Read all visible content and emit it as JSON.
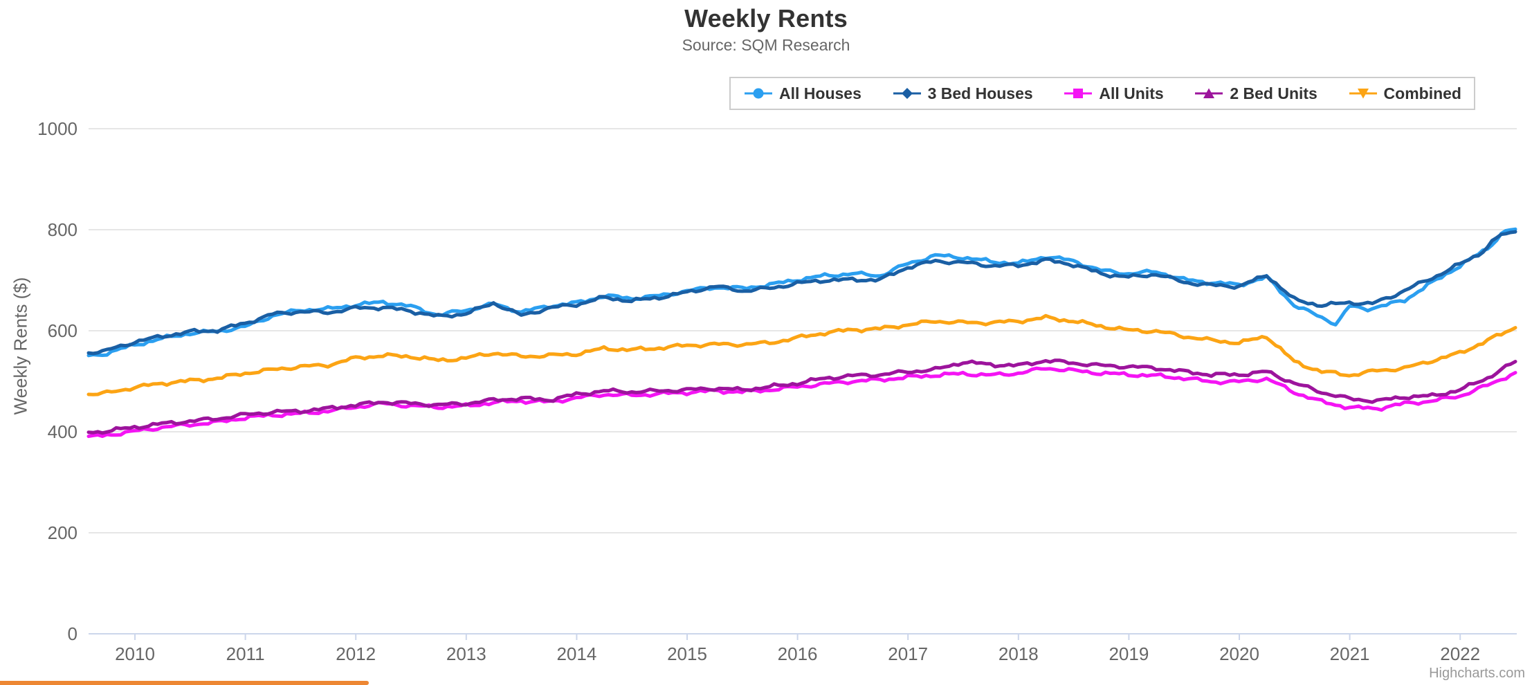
{
  "title": "Weekly Rents",
  "subtitle": "Source: SQM Research",
  "credits": "Highcharts.com",
  "styles": {
    "grid_color": "#e6e6e6",
    "axis_line_color": "#ccd6eb",
    "label_color": "#666666",
    "legend_border_color": "#cccccc",
    "partial_bar_color": "#ed8733"
  },
  "chart_data": {
    "type": "line",
    "title": "Weekly Rents",
    "subtitle": "Source: SQM Research",
    "xlabel": "",
    "ylabel": "Weekly Rents ($)",
    "xlim": [
      2009.58,
      2022.5
    ],
    "ylim": [
      0,
      1000
    ],
    "grid": true,
    "legend_position": "top-right",
    "x_ticks": [
      2010,
      2011,
      2012,
      2013,
      2014,
      2015,
      2016,
      2017,
      2018,
      2019,
      2020,
      2021,
      2022
    ],
    "y_ticks": [
      0,
      200,
      400,
      600,
      800,
      1000
    ],
    "series": [
      {
        "name": "All Houses",
        "color": "#2b9ff0",
        "marker": "circle",
        "points": [
          [
            2009.58,
            551
          ],
          [
            2009.7,
            553
          ],
          [
            2010.0,
            572
          ],
          [
            2010.25,
            585
          ],
          [
            2010.5,
            595
          ],
          [
            2010.75,
            599
          ],
          [
            2011.0,
            608
          ],
          [
            2011.25,
            630
          ],
          [
            2011.5,
            641
          ],
          [
            2011.75,
            643
          ],
          [
            2012.0,
            651
          ],
          [
            2012.25,
            657
          ],
          [
            2012.5,
            648
          ],
          [
            2012.75,
            631
          ],
          [
            2013.0,
            641
          ],
          [
            2013.25,
            653
          ],
          [
            2013.5,
            637
          ],
          [
            2013.75,
            649
          ],
          [
            2014.0,
            655
          ],
          [
            2014.25,
            669
          ],
          [
            2014.5,
            664
          ],
          [
            2014.75,
            669
          ],
          [
            2015.0,
            679
          ],
          [
            2015.25,
            686
          ],
          [
            2015.5,
            684
          ],
          [
            2015.75,
            691
          ],
          [
            2016.0,
            701
          ],
          [
            2016.25,
            709
          ],
          [
            2016.5,
            713
          ],
          [
            2016.75,
            709
          ],
          [
            2017.0,
            733
          ],
          [
            2017.25,
            749
          ],
          [
            2017.5,
            745
          ],
          [
            2017.75,
            737
          ],
          [
            2018.0,
            733
          ],
          [
            2018.25,
            747
          ],
          [
            2018.5,
            738
          ],
          [
            2018.75,
            719
          ],
          [
            2019.0,
            713
          ],
          [
            2019.25,
            717
          ],
          [
            2019.5,
            701
          ],
          [
            2019.75,
            695
          ],
          [
            2020.0,
            691
          ],
          [
            2020.25,
            706
          ],
          [
            2020.5,
            650
          ],
          [
            2020.75,
            626
          ],
          [
            2020.88,
            613
          ],
          [
            2021.0,
            649
          ],
          [
            2021.15,
            643
          ],
          [
            2021.3,
            649
          ],
          [
            2021.5,
            661
          ],
          [
            2021.7,
            689
          ],
          [
            2021.9,
            716
          ],
          [
            2022.1,
            742
          ],
          [
            2022.25,
            764
          ],
          [
            2022.4,
            797
          ],
          [
            2022.5,
            801
          ]
        ]
      },
      {
        "name": "3 Bed Houses",
        "color": "#1a5fa4",
        "marker": "diamond",
        "points": [
          [
            2009.58,
            556
          ],
          [
            2009.7,
            558
          ],
          [
            2010.0,
            578
          ],
          [
            2010.25,
            589
          ],
          [
            2010.5,
            598
          ],
          [
            2010.75,
            601
          ],
          [
            2011.0,
            615
          ],
          [
            2011.25,
            633
          ],
          [
            2011.5,
            638
          ],
          [
            2011.75,
            636
          ],
          [
            2012.0,
            645
          ],
          [
            2012.25,
            646
          ],
          [
            2012.5,
            639
          ],
          [
            2012.75,
            628
          ],
          [
            2013.0,
            634
          ],
          [
            2013.25,
            655
          ],
          [
            2013.5,
            630
          ],
          [
            2013.75,
            645
          ],
          [
            2014.0,
            652
          ],
          [
            2014.25,
            666
          ],
          [
            2014.5,
            659
          ],
          [
            2014.75,
            666
          ],
          [
            2015.0,
            676
          ],
          [
            2015.25,
            688
          ],
          [
            2015.5,
            679
          ],
          [
            2015.75,
            684
          ],
          [
            2016.0,
            694
          ],
          [
            2016.25,
            700
          ],
          [
            2016.5,
            701
          ],
          [
            2016.75,
            701
          ],
          [
            2017.0,
            726
          ],
          [
            2017.25,
            738
          ],
          [
            2017.5,
            735
          ],
          [
            2017.75,
            729
          ],
          [
            2018.0,
            729
          ],
          [
            2018.25,
            740
          ],
          [
            2018.5,
            731
          ],
          [
            2018.75,
            713
          ],
          [
            2019.0,
            706
          ],
          [
            2019.25,
            712
          ],
          [
            2019.5,
            696
          ],
          [
            2019.75,
            690
          ],
          [
            2020.0,
            688
          ],
          [
            2020.25,
            710
          ],
          [
            2020.5,
            661
          ],
          [
            2020.75,
            650
          ],
          [
            2021.0,
            656
          ],
          [
            2021.2,
            653
          ],
          [
            2021.4,
            670
          ],
          [
            2021.6,
            690
          ],
          [
            2021.8,
            710
          ],
          [
            2022.0,
            732
          ],
          [
            2022.2,
            756
          ],
          [
            2022.35,
            788
          ],
          [
            2022.5,
            796
          ]
        ]
      },
      {
        "name": "All Units",
        "color": "#f414f4",
        "marker": "square",
        "points": [
          [
            2009.58,
            391
          ],
          [
            2009.7,
            392
          ],
          [
            2010.0,
            401
          ],
          [
            2010.25,
            409
          ],
          [
            2010.5,
            414
          ],
          [
            2010.75,
            419
          ],
          [
            2011.0,
            428
          ],
          [
            2011.25,
            433
          ],
          [
            2011.5,
            436
          ],
          [
            2011.75,
            441
          ],
          [
            2012.0,
            449
          ],
          [
            2012.25,
            456
          ],
          [
            2012.5,
            451
          ],
          [
            2012.75,
            449
          ],
          [
            2013.0,
            451
          ],
          [
            2013.25,
            458
          ],
          [
            2013.5,
            461
          ],
          [
            2013.75,
            459
          ],
          [
            2014.0,
            467
          ],
          [
            2014.25,
            474
          ],
          [
            2014.5,
            472
          ],
          [
            2014.75,
            475
          ],
          [
            2015.0,
            478
          ],
          [
            2015.25,
            481
          ],
          [
            2015.5,
            479
          ],
          [
            2015.75,
            483
          ],
          [
            2016.0,
            489
          ],
          [
            2016.25,
            495
          ],
          [
            2016.5,
            500
          ],
          [
            2016.75,
            503
          ],
          [
            2017.0,
            508
          ],
          [
            2017.25,
            512
          ],
          [
            2017.5,
            515
          ],
          [
            2017.75,
            512
          ],
          [
            2018.0,
            516
          ],
          [
            2018.25,
            526
          ],
          [
            2018.5,
            521
          ],
          [
            2018.75,
            516
          ],
          [
            2019.0,
            513
          ],
          [
            2019.25,
            511
          ],
          [
            2019.5,
            506
          ],
          [
            2019.75,
            499
          ],
          [
            2020.0,
            499
          ],
          [
            2020.25,
            505
          ],
          [
            2020.5,
            478
          ],
          [
            2020.75,
            459
          ],
          [
            2021.0,
            448
          ],
          [
            2021.25,
            446
          ],
          [
            2021.5,
            456
          ],
          [
            2021.75,
            461
          ],
          [
            2022.0,
            471
          ],
          [
            2022.25,
            492
          ],
          [
            2022.5,
            517
          ]
        ]
      },
      {
        "name": "2 Bed Units",
        "color": "#9c149c",
        "marker": "triangle",
        "points": [
          [
            2009.58,
            399
          ],
          [
            2009.7,
            400
          ],
          [
            2010.0,
            409
          ],
          [
            2010.25,
            416
          ],
          [
            2010.5,
            421
          ],
          [
            2010.75,
            426
          ],
          [
            2011.0,
            434
          ],
          [
            2011.25,
            439
          ],
          [
            2011.5,
            441
          ],
          [
            2011.75,
            446
          ],
          [
            2012.0,
            453
          ],
          [
            2012.25,
            459
          ],
          [
            2012.5,
            456
          ],
          [
            2012.75,
            453
          ],
          [
            2013.0,
            456
          ],
          [
            2013.25,
            463
          ],
          [
            2013.5,
            466
          ],
          [
            2013.75,
            463
          ],
          [
            2014.0,
            474
          ],
          [
            2014.25,
            481
          ],
          [
            2014.5,
            479
          ],
          [
            2014.75,
            481
          ],
          [
            2015.0,
            483
          ],
          [
            2015.25,
            486
          ],
          [
            2015.5,
            483
          ],
          [
            2015.75,
            489
          ],
          [
            2016.0,
            496
          ],
          [
            2016.25,
            506
          ],
          [
            2016.5,
            511
          ],
          [
            2016.75,
            513
          ],
          [
            2017.0,
            519
          ],
          [
            2017.25,
            523
          ],
          [
            2017.5,
            538
          ],
          [
            2017.75,
            533
          ],
          [
            2018.0,
            531
          ],
          [
            2018.25,
            541
          ],
          [
            2018.5,
            536
          ],
          [
            2018.75,
            531
          ],
          [
            2019.0,
            529
          ],
          [
            2019.25,
            526
          ],
          [
            2019.5,
            519
          ],
          [
            2019.75,
            513
          ],
          [
            2020.0,
            513
          ],
          [
            2020.25,
            519
          ],
          [
            2020.5,
            496
          ],
          [
            2020.75,
            478
          ],
          [
            2021.0,
            465
          ],
          [
            2021.25,
            461
          ],
          [
            2021.5,
            469
          ],
          [
            2021.75,
            471
          ],
          [
            2022.0,
            483
          ],
          [
            2022.25,
            507
          ],
          [
            2022.5,
            539
          ]
        ]
      },
      {
        "name": "Combined",
        "color": "#fca414",
        "marker": "triangle-down",
        "points": [
          [
            2009.58,
            474
          ],
          [
            2009.7,
            475
          ],
          [
            2010.0,
            488
          ],
          [
            2010.25,
            496
          ],
          [
            2010.5,
            501
          ],
          [
            2010.75,
            506
          ],
          [
            2011.0,
            516
          ],
          [
            2011.25,
            523
          ],
          [
            2011.5,
            529
          ],
          [
            2011.75,
            532
          ],
          [
            2012.0,
            546
          ],
          [
            2012.25,
            551
          ],
          [
            2012.5,
            549
          ],
          [
            2012.75,
            541
          ],
          [
            2013.0,
            546
          ],
          [
            2013.25,
            556
          ],
          [
            2013.5,
            549
          ],
          [
            2013.75,
            551
          ],
          [
            2014.0,
            554
          ],
          [
            2014.25,
            565
          ],
          [
            2014.5,
            562
          ],
          [
            2014.75,
            566
          ],
          [
            2015.0,
            571
          ],
          [
            2015.25,
            573
          ],
          [
            2015.5,
            573
          ],
          [
            2015.75,
            576
          ],
          [
            2016.0,
            586
          ],
          [
            2016.25,
            596
          ],
          [
            2016.5,
            602
          ],
          [
            2016.75,
            604
          ],
          [
            2017.0,
            612
          ],
          [
            2017.25,
            619
          ],
          [
            2017.5,
            616
          ],
          [
            2017.75,
            616
          ],
          [
            2018.0,
            619
          ],
          [
            2018.25,
            626
          ],
          [
            2018.5,
            619
          ],
          [
            2018.75,
            609
          ],
          [
            2019.0,
            601
          ],
          [
            2019.25,
            599
          ],
          [
            2019.5,
            589
          ],
          [
            2019.75,
            581
          ],
          [
            2020.0,
            576
          ],
          [
            2020.25,
            589
          ],
          [
            2020.5,
            538
          ],
          [
            2020.75,
            519
          ],
          [
            2021.0,
            512
          ],
          [
            2021.25,
            521
          ],
          [
            2021.5,
            526
          ],
          [
            2021.75,
            541
          ],
          [
            2022.0,
            556
          ],
          [
            2022.25,
            581
          ],
          [
            2022.5,
            606
          ]
        ]
      }
    ]
  }
}
